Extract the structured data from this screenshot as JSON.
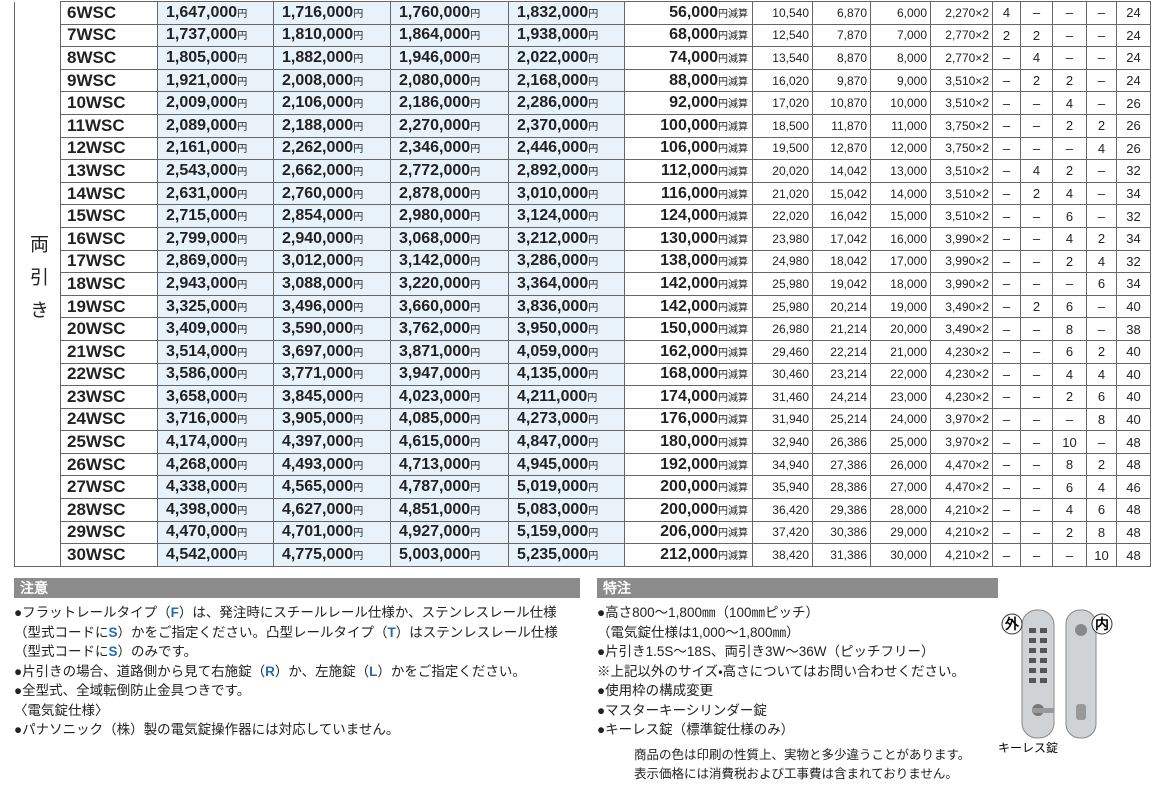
{
  "table": {
    "side_label": "両引き",
    "price_unit": "円",
    "reduction_unit": "円減算",
    "rows": [
      [
        "6WSC",
        "1,647,000",
        "1,716,000",
        "1,760,000",
        "1,832,000",
        "56,000",
        "10,540",
        "6,870",
        "6,000",
        "2,270×2",
        "4",
        "–",
        "–",
        "–",
        "24"
      ],
      [
        "7WSC",
        "1,737,000",
        "1,810,000",
        "1,864,000",
        "1,938,000",
        "68,000",
        "12,540",
        "7,870",
        "7,000",
        "2,770×2",
        "2",
        "2",
        "–",
        "–",
        "24"
      ],
      [
        "8WSC",
        "1,805,000",
        "1,882,000",
        "1,946,000",
        "2,022,000",
        "74,000",
        "13,540",
        "8,870",
        "8,000",
        "2,770×2",
        "–",
        "4",
        "–",
        "–",
        "24"
      ],
      [
        "9WSC",
        "1,921,000",
        "2,008,000",
        "2,080,000",
        "2,168,000",
        "88,000",
        "16,020",
        "9,870",
        "9,000",
        "3,510×2",
        "–",
        "2",
        "2",
        "–",
        "24"
      ],
      [
        "10WSC",
        "2,009,000",
        "2,106,000",
        "2,186,000",
        "2,286,000",
        "92,000",
        "17,020",
        "10,870",
        "10,000",
        "3,510×2",
        "–",
        "–",
        "4",
        "–",
        "26"
      ],
      [
        "11WSC",
        "2,089,000",
        "2,188,000",
        "2,270,000",
        "2,370,000",
        "100,000",
        "18,500",
        "11,870",
        "11,000",
        "3,750×2",
        "–",
        "–",
        "2",
        "2",
        "26"
      ],
      [
        "12WSC",
        "2,161,000",
        "2,262,000",
        "2,346,000",
        "2,446,000",
        "106,000",
        "19,500",
        "12,870",
        "12,000",
        "3,750×2",
        "–",
        "–",
        "–",
        "4",
        "26"
      ],
      [
        "13WSC",
        "2,543,000",
        "2,662,000",
        "2,772,000",
        "2,892,000",
        "112,000",
        "20,020",
        "14,042",
        "13,000",
        "3,510×2",
        "–",
        "4",
        "2",
        "–",
        "32"
      ],
      [
        "14WSC",
        "2,631,000",
        "2,760,000",
        "2,878,000",
        "3,010,000",
        "116,000",
        "21,020",
        "15,042",
        "14,000",
        "3,510×2",
        "–",
        "2",
        "4",
        "–",
        "34"
      ],
      [
        "15WSC",
        "2,715,000",
        "2,854,000",
        "2,980,000",
        "3,124,000",
        "124,000",
        "22,020",
        "16,042",
        "15,000",
        "3,510×2",
        "–",
        "–",
        "6",
        "–",
        "32"
      ],
      [
        "16WSC",
        "2,799,000",
        "2,940,000",
        "3,068,000",
        "3,212,000",
        "130,000",
        "23,980",
        "17,042",
        "16,000",
        "3,990×2",
        "–",
        "–",
        "4",
        "2",
        "34"
      ],
      [
        "17WSC",
        "2,869,000",
        "3,012,000",
        "3,142,000",
        "3,286,000",
        "138,000",
        "24,980",
        "18,042",
        "17,000",
        "3,990×2",
        "–",
        "–",
        "2",
        "4",
        "32"
      ],
      [
        "18WSC",
        "2,943,000",
        "3,088,000",
        "3,220,000",
        "3,364,000",
        "142,000",
        "25,980",
        "19,042",
        "18,000",
        "3,990×2",
        "–",
        "–",
        "–",
        "6",
        "34"
      ],
      [
        "19WSC",
        "3,325,000",
        "3,496,000",
        "3,660,000",
        "3,836,000",
        "142,000",
        "25,980",
        "20,214",
        "19,000",
        "3,490×2",
        "–",
        "2",
        "6",
        "–",
        "40"
      ],
      [
        "20WSC",
        "3,409,000",
        "3,590,000",
        "3,762,000",
        "3,950,000",
        "150,000",
        "26,980",
        "21,214",
        "20,000",
        "3,490×2",
        "–",
        "–",
        "8",
        "–",
        "38"
      ],
      [
        "21WSC",
        "3,514,000",
        "3,697,000",
        "3,871,000",
        "4,059,000",
        "162,000",
        "29,460",
        "22,214",
        "21,000",
        "4,230×2",
        "–",
        "–",
        "6",
        "2",
        "40"
      ],
      [
        "22WSC",
        "3,586,000",
        "3,771,000",
        "3,947,000",
        "4,135,000",
        "168,000",
        "30,460",
        "23,214",
        "22,000",
        "4,230×2",
        "–",
        "–",
        "4",
        "4",
        "40"
      ],
      [
        "23WSC",
        "3,658,000",
        "3,845,000",
        "4,023,000",
        "4,211,000",
        "174,000",
        "31,460",
        "24,214",
        "23,000",
        "4,230×2",
        "–",
        "–",
        "2",
        "6",
        "40"
      ],
      [
        "24WSC",
        "3,716,000",
        "3,905,000",
        "4,085,000",
        "4,273,000",
        "176,000",
        "31,940",
        "25,214",
        "24,000",
        "3,970×2",
        "–",
        "–",
        "–",
        "8",
        "40"
      ],
      [
        "25WSC",
        "4,174,000",
        "4,397,000",
        "4,615,000",
        "4,847,000",
        "180,000",
        "32,940",
        "26,386",
        "25,000",
        "3,970×2",
        "–",
        "–",
        "10",
        "–",
        "48"
      ],
      [
        "26WSC",
        "4,268,000",
        "4,493,000",
        "4,713,000",
        "4,945,000",
        "192,000",
        "34,940",
        "27,386",
        "26,000",
        "4,470×2",
        "–",
        "–",
        "8",
        "2",
        "48"
      ],
      [
        "27WSC",
        "4,338,000",
        "4,565,000",
        "4,787,000",
        "5,019,000",
        "200,000",
        "35,940",
        "28,386",
        "27,000",
        "4,470×2",
        "–",
        "–",
        "6",
        "4",
        "46"
      ],
      [
        "28WSC",
        "4,398,000",
        "4,627,000",
        "4,851,000",
        "5,083,000",
        "200,000",
        "36,420",
        "29,386",
        "28,000",
        "4,210×2",
        "–",
        "–",
        "4",
        "6",
        "48"
      ],
      [
        "29WSC",
        "4,470,000",
        "4,701,000",
        "4,927,000",
        "5,159,000",
        "206,000",
        "37,420",
        "30,386",
        "29,000",
        "4,210×2",
        "–",
        "–",
        "2",
        "8",
        "48"
      ],
      [
        "30WSC",
        "4,542,000",
        "4,775,000",
        "5,003,000",
        "5,235,000",
        "212,000",
        "38,420",
        "31,386",
        "30,000",
        "4,210×2",
        "–",
        "–",
        "–",
        "10",
        "48"
      ]
    ]
  },
  "notes": {
    "title": "注意",
    "lines": [
      [
        "●フラットレールタイプ（",
        "F",
        "）は、発注時にスチールレール仕様か、ステンレスレール仕様"
      ],
      [
        "（型式コードに",
        "S",
        "）かをご指定ください。凸型レールタイプ（",
        "T",
        "）はステンレスレール仕様"
      ],
      [
        "（型式コードに",
        "S",
        "）のみです。"
      ],
      [
        "●片引きの場合、道路側から見て右施錠（",
        "R",
        "）か、左施錠（",
        "L",
        "）かをご指定ください。"
      ],
      [
        "●全型式、全域転倒防止金具つきです。"
      ],
      [
        "〈電気錠仕様〉"
      ],
      [
        "●パナソニック（株）製の電気錠操作器には対応していません。"
      ]
    ]
  },
  "special": {
    "title": "特注",
    "lines": [
      "●高さ800～1,800㎜（100㎜ピッチ）",
      "（電気錠仕様は1,000～1,800㎜）",
      "●片引き1.5S～18S、両引き3W～36W（ピッチフリー）",
      "※上記以外のサイズ・高さについてはお問い合わせください。",
      "●使用枠の構成変更",
      "●マスターキーシリンダー錠",
      "●キーレス錠（標準錠仕様のみ）"
    ],
    "footer": [
      "商品の色は印刷の性質上、実物と多少違うことがあります。",
      "表示価格には消費税および工事費は含まれておりません。"
    ]
  },
  "image": {
    "outside": "外",
    "inside": "内",
    "caption": "キーレス錠"
  }
}
